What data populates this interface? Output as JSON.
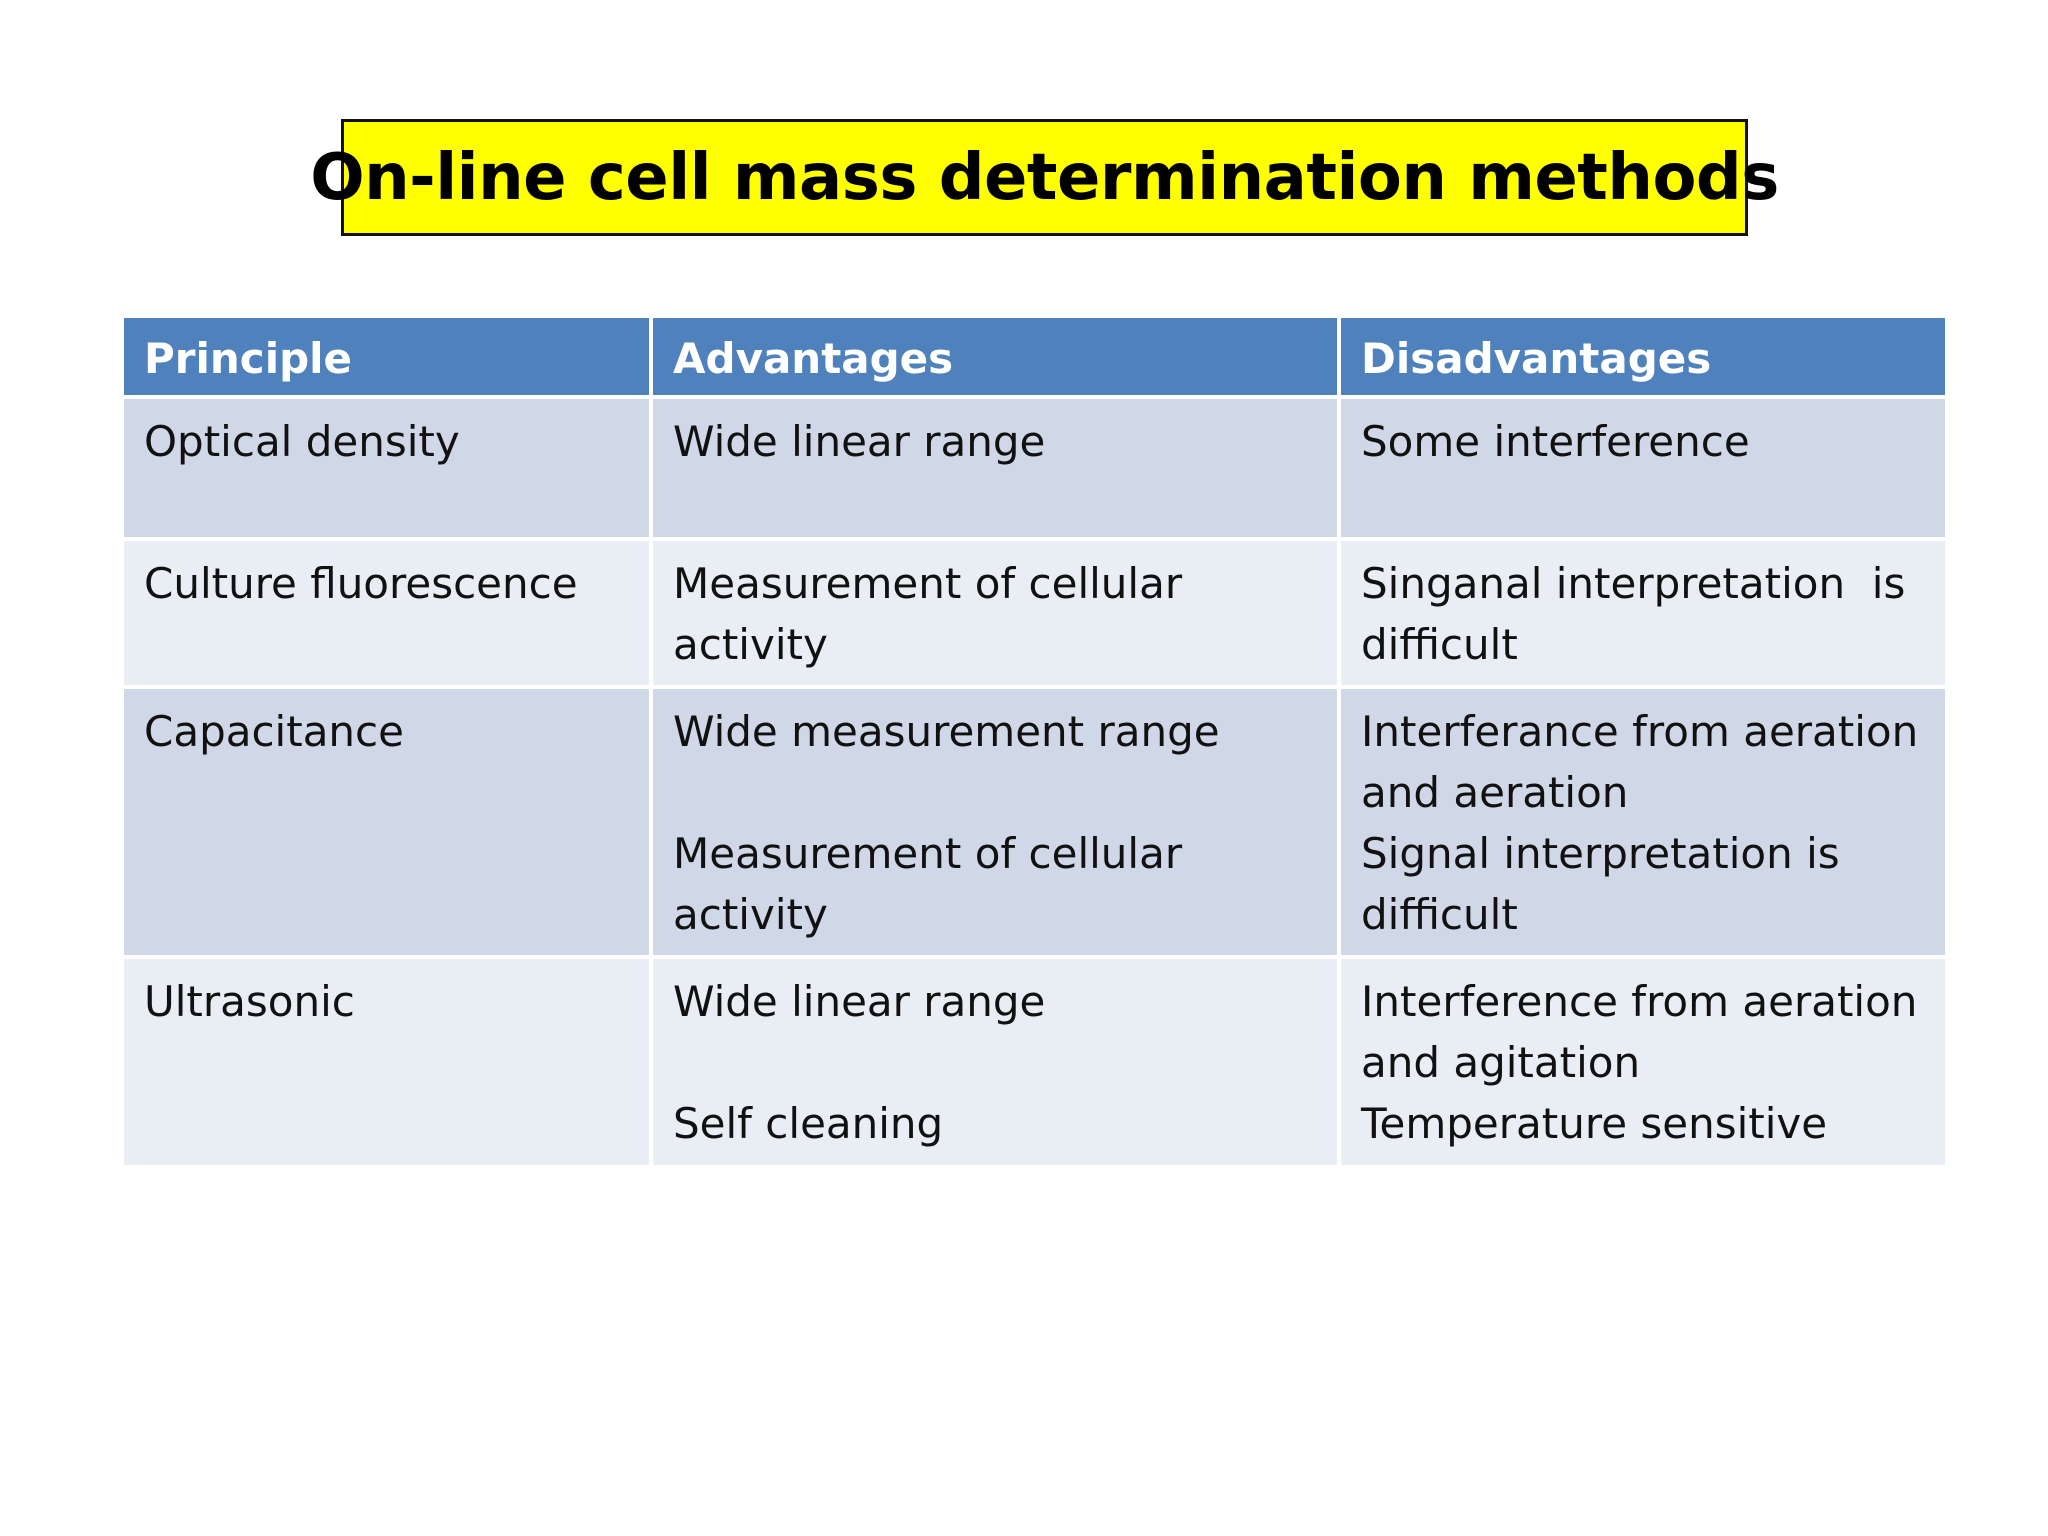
{
  "title": "On-line cell mass determination methods",
  "table": {
    "headers": [
      "Principle",
      "Advantages",
      "Disadvantages"
    ],
    "rows": [
      {
        "principle": "Optical density",
        "advantages": [
          "Wide linear range"
        ],
        "disadvantages": [
          "Some interference"
        ]
      },
      {
        "principle": "Culture fluorescence",
        "advantages": [
          "Measurement of cellular activity"
        ],
        "disadvantages": [
          "Singanal interpretation  is difficult"
        ]
      },
      {
        "principle": "Capacitance",
        "advantages": [
          "Wide measurement range",
          "Measurement of cellular activity"
        ],
        "disadvantages": [
          "Interferance from aeration and aeration",
          "Signal interpretation is difficult"
        ]
      },
      {
        "principle": "Ultrasonic",
        "advantages": [
          "Wide linear range",
          "Self cleaning"
        ],
        "disadvantages": [
          "Interference from aeration and agitation",
          "Temperature sensitive"
        ]
      }
    ]
  },
  "colors": {
    "title_background": "#ffff00",
    "header_background": "#4f81bd",
    "row_dark": "#d0d8e8",
    "row_light": "#e9edf4"
  }
}
